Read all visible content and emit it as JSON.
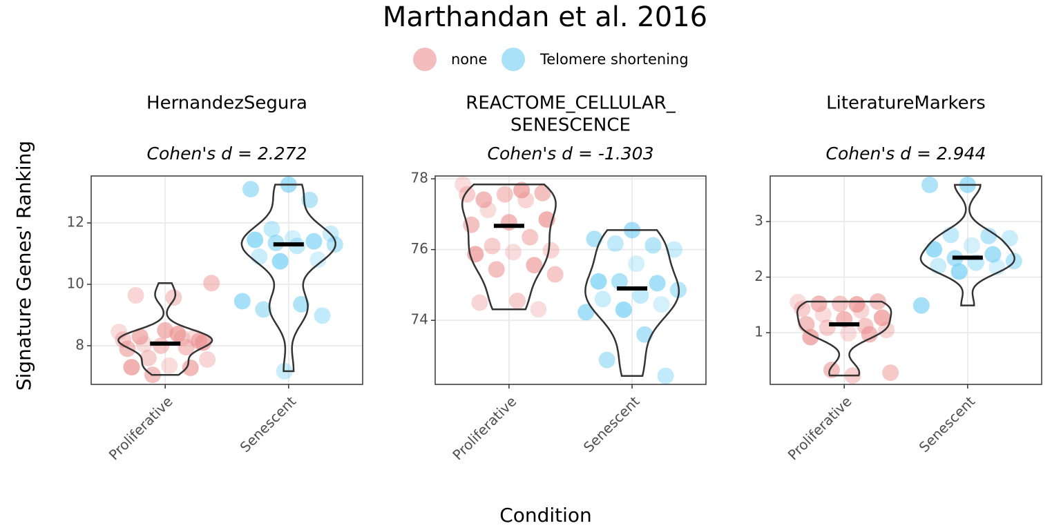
{
  "title": "Marthandan et al. 2016",
  "x_label": "Condition",
  "y_label": "Signature Genes' Ranking",
  "chart_data": [
    {
      "type": "violin",
      "title": "HernandezSegura",
      "subtitle": "Cohen's d = 2.272",
      "categories": [
        "Proliferative",
        "Senescent"
      ],
      "series": [
        {
          "name": "none",
          "color": "#ec8f8f",
          "values": [
            8.45,
            8.38,
            8.3,
            8.15,
            8.0,
            8.2,
            8.25,
            8.05,
            8.1,
            8.5,
            7.9,
            7.95,
            7.6,
            7.55,
            7.35,
            7.3,
            7.28,
            7.05,
            10.04,
            9.57,
            9.64,
            8.28
          ]
        },
        {
          "name": "Telomere shortening",
          "color": "#6fcdf3",
          "values": [
            13.25,
            13.1,
            12.75,
            11.8,
            11.65,
            11.5,
            11.45,
            11.4,
            11.35,
            11.3,
            11.25,
            10.9,
            10.8,
            10.75,
            9.45,
            9.35,
            9.18,
            8.98,
            7.17
          ]
        }
      ],
      "medians": [
        8.07,
        11.3
      ],
      "ylim": [
        6.74,
        13.53
      ],
      "yticks": [
        8,
        10,
        12
      ],
      "grid": true
    },
    {
      "type": "violin",
      "title": [
        "REACTOME_CELLULAR_",
        "SENESCENCE"
      ],
      "subtitle": "Cohen's d = -1.303",
      "categories": [
        "Proliferative",
        "Senescent"
      ],
      "series": [
        {
          "name": "none",
          "color": "#ec8f8f",
          "values": [
            77.84,
            77.68,
            77.41,
            77.6,
            77.56,
            77.56,
            77.4,
            77.12,
            76.85,
            76.77,
            76.7,
            76.35,
            76.1,
            75.98,
            75.93,
            75.87,
            75.56,
            75.44,
            75.3,
            74.55,
            74.5,
            74.31
          ]
        },
        {
          "name": "Telomere shortening",
          "color": "#6fcdf3",
          "values": [
            76.55,
            76.3,
            76.12,
            76.17,
            76.0,
            75.6,
            75.1,
            75.05,
            75.1,
            74.86,
            74.7,
            74.6,
            74.45,
            74.3,
            74.23,
            73.6,
            72.88,
            72.43
          ]
        }
      ],
      "medians": [
        76.67,
        74.9
      ],
      "ylim": [
        72.19,
        78.08
      ],
      "yticks": [
        74,
        76,
        78
      ],
      "grid": true
    },
    {
      "type": "violin",
      "title": "LiteratureMarkers",
      "subtitle": "Cohen's d = 2.944",
      "categories": [
        "Proliferative",
        "Senescent"
      ],
      "series": [
        {
          "name": "none",
          "color": "#ec8f8f",
          "values": [
            1.55,
            1.51,
            1.52,
            1.56,
            1.52,
            1.43,
            1.4,
            1.33,
            1.27,
            1.24,
            1.15,
            1.12,
            1.09,
            1.05,
            0.99,
            0.92,
            0.97,
            0.33,
            0.28,
            0.23
          ]
        },
        {
          "name": "Telomere shortening",
          "color": "#6fcdf3",
          "values": [
            3.66,
            3.66,
            2.74,
            2.76,
            2.7,
            2.57,
            2.5,
            2.41,
            2.34,
            2.29,
            2.26,
            2.2,
            2.18,
            2.1,
            1.49
          ]
        }
      ],
      "medians": [
        1.15,
        2.35
      ],
      "ylim": [
        0.07,
        3.82
      ],
      "yticks": [
        1,
        2,
        3
      ],
      "grid": true
    }
  ]
}
